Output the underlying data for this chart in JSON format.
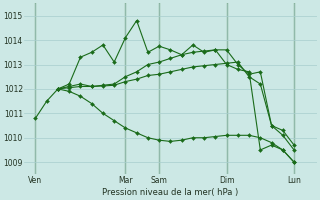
{
  "background_color": "#cce8e5",
  "grid_color": "#a8cece",
  "grid_color_minor": "#b8d8d8",
  "line_color": "#1a6b1a",
  "marker_color": "#1a6b1a",
  "vline_color": "#5a8a5a",
  "xlabel": "Pression niveau de la mer( hPa )",
  "ylim": [
    1008.5,
    1015.5
  ],
  "yticks": [
    1009,
    1010,
    1011,
    1012,
    1013,
    1014,
    1015
  ],
  "xtick_labels": [
    "Ven",
    "Mar",
    "Sam",
    "Dim",
    "Lun"
  ],
  "xtick_positions": [
    0,
    8,
    11,
    17,
    23
  ],
  "vline_positions": [
    0,
    8,
    11,
    17,
    23
  ],
  "xlim": [
    -1,
    25
  ],
  "series": [
    {
      "x": [
        0,
        1,
        2,
        3,
        4,
        5,
        6,
        7,
        8,
        9,
        10,
        11,
        12,
        13,
        14,
        15,
        16,
        17,
        18,
        19,
        20,
        21,
        22,
        23
      ],
      "y": [
        1010.8,
        1011.5,
        1012.0,
        1012.2,
        1013.3,
        1013.5,
        1013.8,
        1013.1,
        1014.1,
        1014.8,
        1013.5,
        1013.75,
        1013.6,
        1013.4,
        1013.8,
        1013.5,
        1013.6,
        1013.0,
        1012.8,
        1012.7,
        1009.5,
        1009.7,
        1009.5,
        1009.0
      ]
    },
    {
      "x": [
        2,
        3,
        4,
        5,
        6,
        7,
        8,
        9,
        10,
        11,
        12,
        13,
        14,
        15,
        16,
        17,
        18,
        19,
        20,
        21,
        22,
        23
      ],
      "y": [
        1012.0,
        1012.1,
        1012.2,
        1012.1,
        1012.15,
        1012.2,
        1012.5,
        1012.7,
        1013.0,
        1013.1,
        1013.25,
        1013.4,
        1013.5,
        1013.55,
        1013.6,
        1013.6,
        1013.0,
        1012.6,
        1012.7,
        1010.5,
        1010.3,
        1009.7
      ]
    },
    {
      "x": [
        2,
        3,
        4,
        5,
        6,
        7,
        8,
        9,
        10,
        11,
        12,
        13,
        14,
        15,
        16,
        17,
        18,
        19,
        20,
        21,
        22,
        23
      ],
      "y": [
        1012.0,
        1012.05,
        1012.1,
        1012.1,
        1012.12,
        1012.15,
        1012.3,
        1012.4,
        1012.55,
        1012.6,
        1012.7,
        1012.8,
        1012.9,
        1012.95,
        1013.0,
        1013.05,
        1013.1,
        1012.5,
        1012.2,
        1010.5,
        1010.1,
        1009.5
      ]
    },
    {
      "x": [
        2,
        3,
        4,
        5,
        6,
        7,
        8,
        9,
        10,
        11,
        12,
        13,
        14,
        15,
        16,
        17,
        18,
        19,
        20,
        21,
        22,
        23
      ],
      "y": [
        1012.0,
        1011.9,
        1011.7,
        1011.4,
        1011.0,
        1010.7,
        1010.4,
        1010.2,
        1010.0,
        1009.9,
        1009.85,
        1009.9,
        1010.0,
        1010.0,
        1010.05,
        1010.1,
        1010.1,
        1010.1,
        1010.0,
        1009.8,
        1009.5,
        1009.0
      ]
    }
  ]
}
